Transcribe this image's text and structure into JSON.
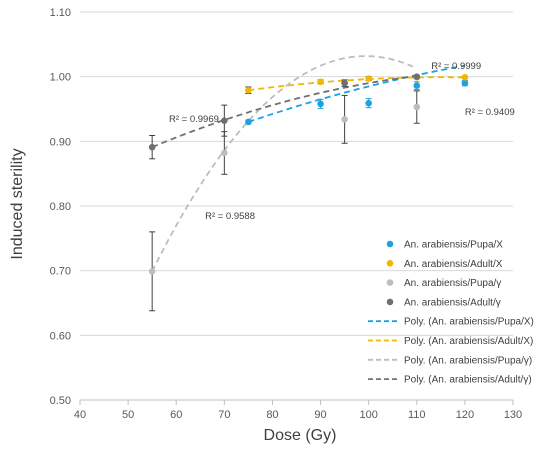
{
  "chart_data": {
    "type": "scatter",
    "xlabel": "Dose (Gy)",
    "ylabel": "Induced sterility",
    "xlim": [
      40,
      130
    ],
    "ylim": [
      0.5,
      1.1
    ],
    "xticks": [
      "40",
      "50",
      "60",
      "70",
      "80",
      "90",
      "100",
      "110",
      "120",
      "130"
    ],
    "yticks": [
      "0.50",
      "0.60",
      "0.70",
      "0.80",
      "0.90",
      "1.00",
      "1.10"
    ],
    "grid": "horizontal",
    "legend_position": "right",
    "colors": {
      "pupa_x": "#1aa3e0",
      "adult_x": "#f2b800",
      "pupa_g": "#bdbdbd",
      "adult_g": "#707070"
    },
    "series": [
      {
        "name": "An. arabiensis/Pupa/X",
        "color_key": "pupa_x",
        "x": [
          75,
          90,
          100,
          110,
          120
        ],
        "y": [
          0.93,
          0.958,
          0.959,
          0.986,
          0.99
        ],
        "err": [
          0.003,
          0.007,
          0.007,
          0.006,
          0.004
        ]
      },
      {
        "name": "An. arabiensis/Adult/X",
        "color_key": "adult_x",
        "x": [
          75,
          90,
          100,
          110,
          120
        ],
        "y": [
          0.979,
          0.992,
          0.997,
          0.999,
          0.999
        ],
        "err": [
          0.005,
          0.003,
          0.003,
          0.002,
          0.001
        ]
      },
      {
        "name": "An. arabiensis/Pupa/γ",
        "color_key": "pupa_g",
        "x": [
          55,
          70,
          95,
          110
        ],
        "y": [
          0.699,
          0.882,
          0.934,
          0.953
        ],
        "err": [
          0.061,
          0.033,
          0.037,
          0.025
        ]
      },
      {
        "name": "An. arabiensis/Adult/γ",
        "color_key": "adult_g",
        "x": [
          55,
          70,
          95,
          110
        ],
        "y": [
          0.891,
          0.932,
          0.99,
          1.0
        ],
        "err": [
          0.018,
          0.024,
          0.005,
          0.002
        ]
      }
    ],
    "trendlines": [
      {
        "name": "Poly. (An. arabiensis/Pupa/X)",
        "color_key": "pupa_x",
        "x_range": [
          75,
          120
        ],
        "coeffs": [
          0.93,
          0.002533,
          -1.33e-05
        ]
      },
      {
        "name": "Poly. (An. arabiensis/Adult/X)",
        "color_key": "adult_x",
        "x_range": [
          75,
          120
        ],
        "coeffs": [
          0.979,
          0.001,
          -1.24e-05
        ]
      },
      {
        "name": "Poly. (An. arabiensis/Pupa/γ)",
        "color_key": "pupa_g",
        "x_range": [
          55,
          110
        ],
        "coeffs": [
          0.699,
          0.015,
          -0.000169
        ]
      },
      {
        "name": "Poly. (An. arabiensis/Adult/γ)",
        "color_key": "adult_g",
        "x_range": [
          55,
          110
        ],
        "coeffs": [
          0.891,
          0.0031,
          -2e-05
        ]
      }
    ],
    "annotations": [
      {
        "text": "R² = 0.9969",
        "x": 58.5,
        "y": 0.93
      },
      {
        "text": "R² = 0.9999",
        "x": 113,
        "y": 1.012
      },
      {
        "text": "R² = 0.9409",
        "x": 120,
        "y": 0.941
      },
      {
        "text": "R² = 0.9588",
        "x": 66,
        "y": 0.78
      }
    ]
  }
}
